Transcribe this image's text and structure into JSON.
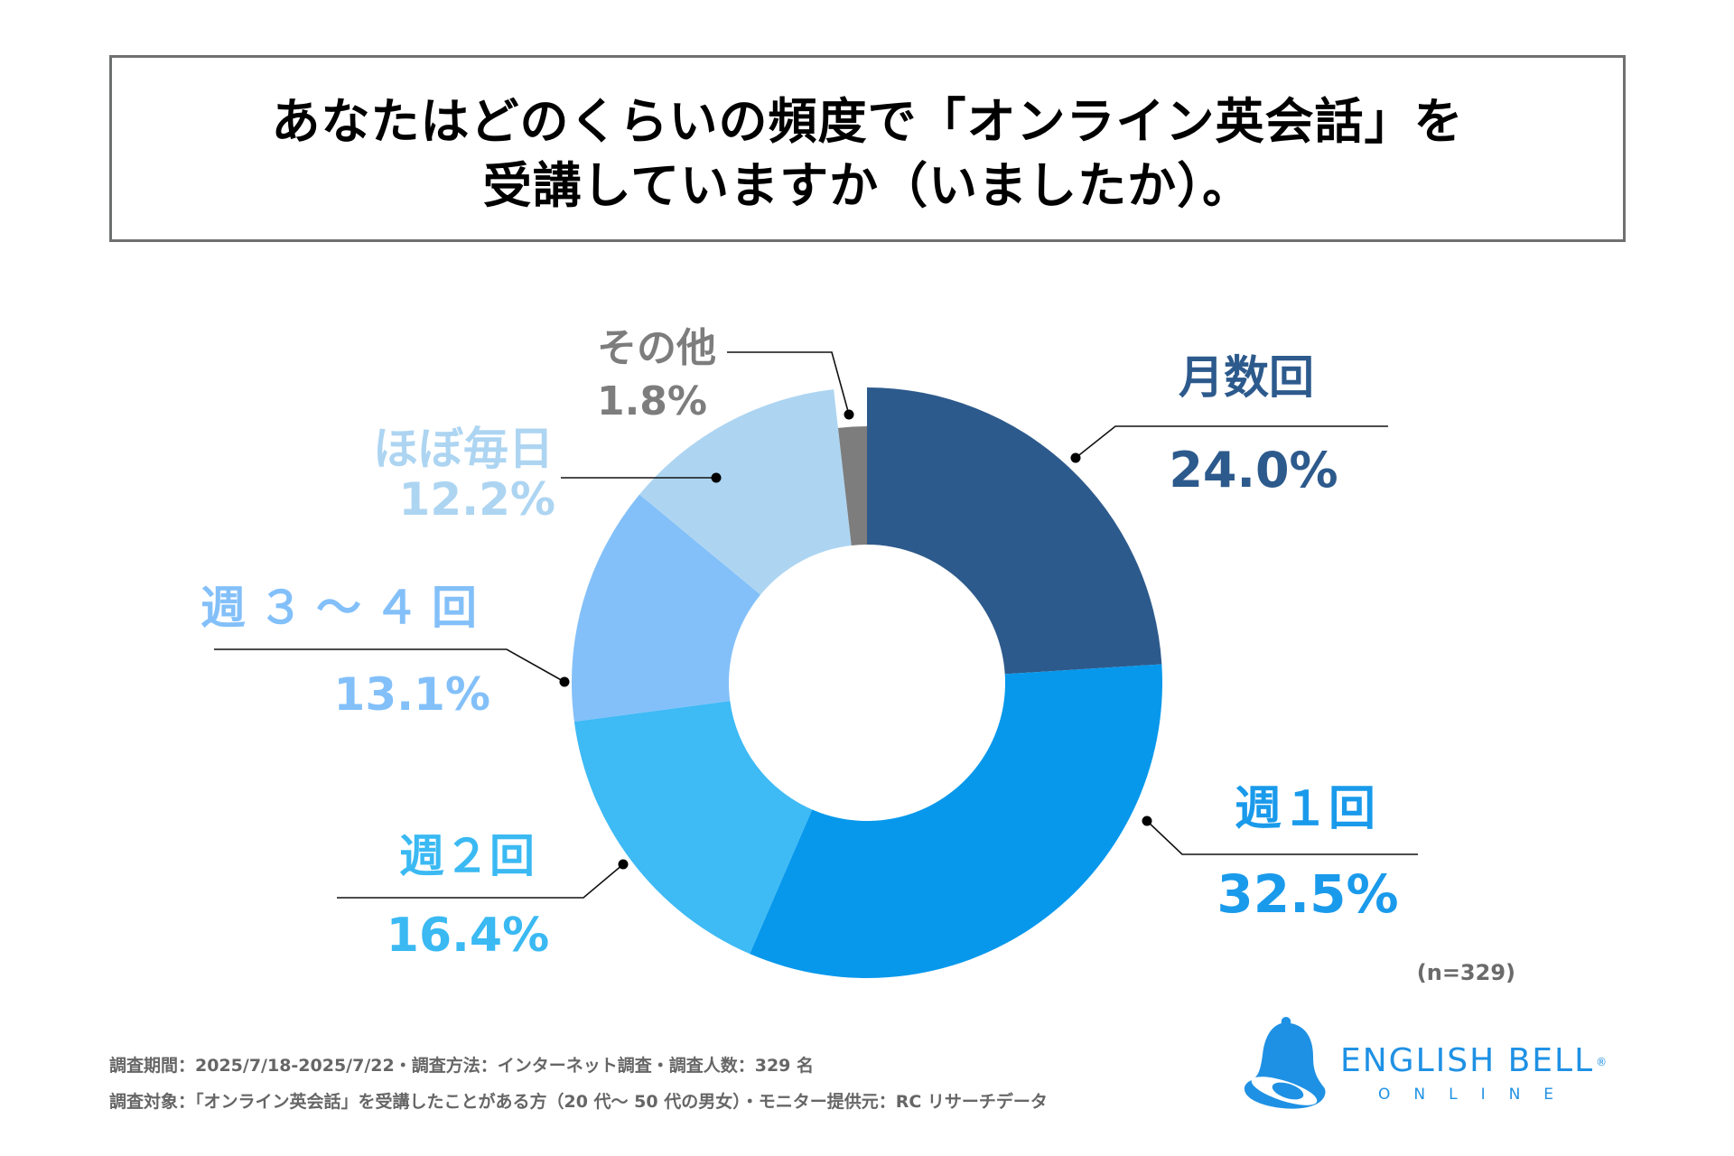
{
  "title": {
    "line1": "あなたはどのくらいの頻度で「オンライン英会話」を",
    "line2": "受講していますか（いましたか）。"
  },
  "chart_data": {
    "type": "pie",
    "subtype": "donut",
    "title": "あなたはどのくらいの頻度で「オンライン英会話」を受講していますか（いましたか）。",
    "unit": "%",
    "start": "12 o'clock, clockwise",
    "slices": [
      {
        "label": "月数回",
        "value": 24.0,
        "display": "24.0%",
        "color": "#2d5a8c",
        "text_color": "#2d5a8c"
      },
      {
        "label": "週１回",
        "value": 32.5,
        "display": "32.5%",
        "color": "#0798ec",
        "text_color": "#1a9aeb"
      },
      {
        "label": "週２回",
        "value": 16.4,
        "display": "16.4%",
        "color": "#3ebaf5",
        "text_color": "#3ab9f3"
      },
      {
        "label": "週３～４回",
        "value": 13.1,
        "display": "13.1%",
        "color": "#83c0f9",
        "text_color": "#83c0f9"
      },
      {
        "label": "ほぼ毎日",
        "value": 12.2,
        "display": "12.2%",
        "color": "#add5f2",
        "text_color": "#add5f2"
      },
      {
        "label": "その他",
        "value": 1.8,
        "display": "1.8%",
        "color": "#7d7d7d",
        "text_color": "#7d7d7d"
      }
    ],
    "sample_note": "(n=329)",
    "legend": "callout labels"
  },
  "footer": {
    "line1": "調査期間：2025/7/18-2025/7/22・調査方法：インターネット調査・調査人数：329 名",
    "line2": "調査対象：「オンライン英会話」を受講したことがある方（20 代～ 50 代の男女）・モニター提供元：RC リサーチデータ"
  },
  "logo": {
    "name": "ENGLISH BELL",
    "registered": "®",
    "sub": "ONLINE",
    "icon": "bell-icon",
    "color": "#1f91e4"
  }
}
